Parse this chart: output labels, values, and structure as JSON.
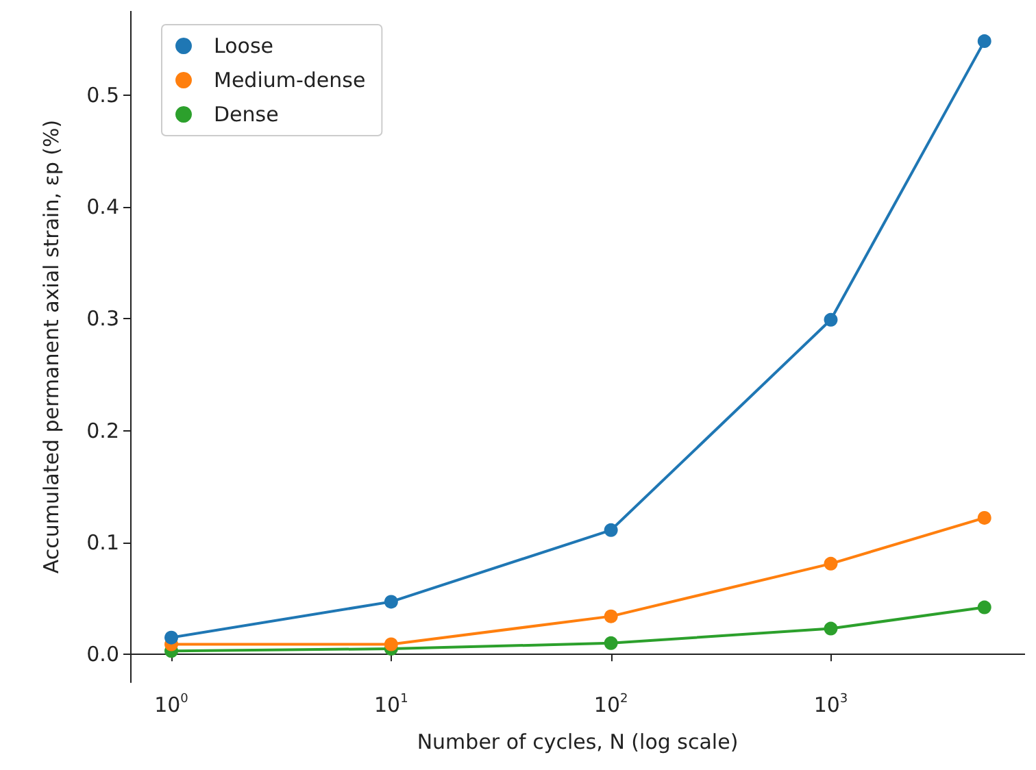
{
  "chart_data": {
    "type": "line",
    "xlabel": "Number of cycles, N (log scale)",
    "ylabel": "Accumulated permanent axial strain, εp (%)",
    "x": [
      1,
      10,
      100,
      1000,
      5000
    ],
    "series": [
      {
        "name": "Loose",
        "color": "#1f77b4",
        "values": [
          0.015,
          0.047,
          0.111,
          0.299,
          0.548
        ]
      },
      {
        "name": "Medium-dense",
        "color": "#ff7f0e",
        "values": [
          0.009,
          0.009,
          0.034,
          0.081,
          0.122
        ]
      },
      {
        "name": "Dense",
        "color": "#2ca02c",
        "values": [
          0.003,
          0.005,
          0.01,
          0.023,
          0.042
        ]
      }
    ],
    "log": "x",
    "xlim": [
      0.65,
      7650
    ],
    "ylim": [
      -0.025,
      0.575
    ],
    "xticks": [
      {
        "value": 1,
        "label": "10$^{0}$"
      },
      {
        "value": 10,
        "label": "10$^{1}$"
      },
      {
        "value": 100,
        "label": "10$^{2}$"
      },
      {
        "value": 1000,
        "label": "10$^{3}$"
      }
    ],
    "yticks": [
      {
        "value": 0,
        "label": "0.0"
      },
      {
        "value": 0.1,
        "label": "0.1"
      },
      {
        "value": 0.2,
        "label": "0.2"
      },
      {
        "value": 0.3,
        "label": "0.3"
      },
      {
        "value": 0.4,
        "label": "0.4"
      },
      {
        "value": 0.5,
        "label": "0.5"
      }
    ],
    "legend": "top left",
    "marker": "circle",
    "line_style": "solid",
    "grid": false
  }
}
